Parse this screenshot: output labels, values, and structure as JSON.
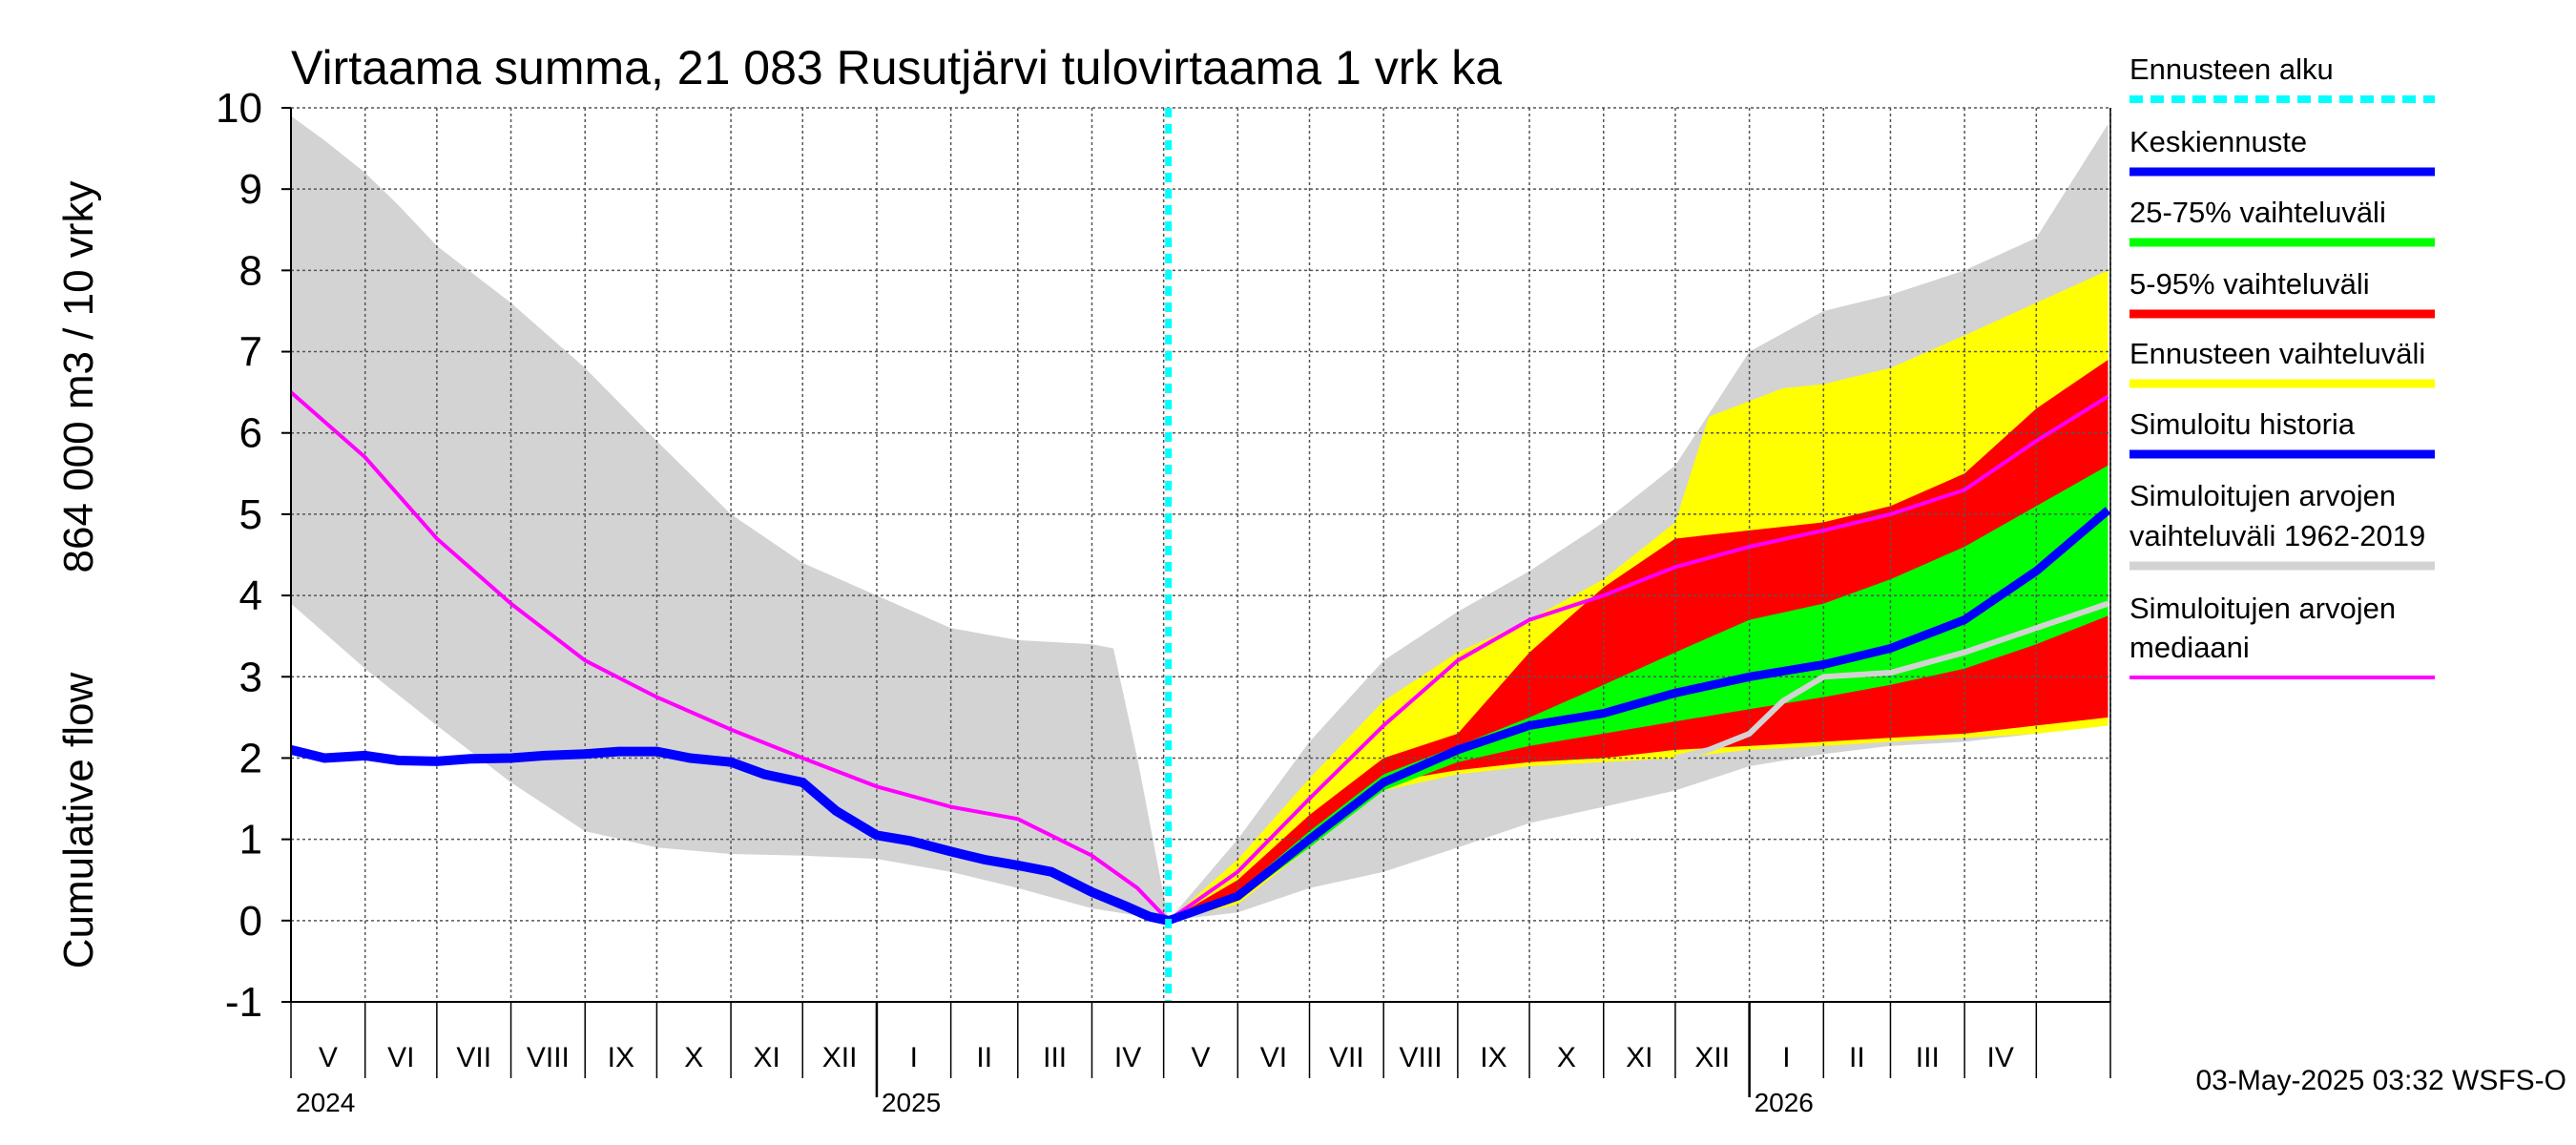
{
  "chart_data": {
    "type": "area",
    "title": "Virtaama summa, 21 083 Rusutjärvi tulovirtaama 1 vrk ka",
    "ylabel_lines": [
      "Cumulative flow",
      "864 000 m3 / 10 vrky"
    ],
    "xlabel": "",
    "ylim": [
      -1,
      10
    ],
    "yticks": [
      -1,
      0,
      1,
      2,
      3,
      4,
      5,
      6,
      7,
      8,
      9,
      10
    ],
    "grid": true,
    "legend_position": "right",
    "x_start": "2024-05-01",
    "x_end": "2026-05-31",
    "forecast_start": "2025-05-03",
    "month_labels": [
      "V",
      "VI",
      "VII",
      "VIII",
      "IX",
      "X",
      "XI",
      "XII",
      "I",
      "II",
      "III",
      "IV",
      "V",
      "VI",
      "VII",
      "VIII",
      "IX",
      "X",
      "XI",
      "XII",
      "I",
      "II",
      "III",
      "IV"
    ],
    "year_labels": [
      {
        "label": "2024",
        "date": "2024-05-01"
      },
      {
        "label": "2025",
        "date": "2025-01-01"
      },
      {
        "label": "2026",
        "date": "2026-01-01"
      }
    ],
    "legend": [
      {
        "label_lines": [
          "Ennusteen alku"
        ],
        "color": "#00ffff",
        "style": "dashed"
      },
      {
        "label_lines": [
          "Keskiennuste"
        ],
        "color": "#0000ff",
        "style": "solid"
      },
      {
        "label_lines": [
          "25-75% vaihteluväli"
        ],
        "color": "#00ff00",
        "style": "solid"
      },
      {
        "label_lines": [
          "5-95% vaihteluväli"
        ],
        "color": "#ff0000",
        "style": "solid"
      },
      {
        "label_lines": [
          "Ennusteen vaihteluväli"
        ],
        "color": "#ffff00",
        "style": "solid"
      },
      {
        "label_lines": [
          "Simuloitu historia"
        ],
        "color": "#0000ff",
        "style": "solid"
      },
      {
        "label_lines": [
          "Simuloitujen arvojen",
          "vaihteluväli 1962-2019"
        ],
        "color": "#d3d3d3",
        "style": "solid"
      },
      {
        "label_lines": [
          "Simuloitujen arvojen",
          "mediaani"
        ],
        "color": "#ff00ff",
        "style": "solid"
      }
    ],
    "series": {
      "hist_range_upper": [
        [
          "2024-05-01",
          9.9
        ],
        [
          "2024-05-15",
          9.6
        ],
        [
          "2024-06-01",
          9.2
        ],
        [
          "2024-06-15",
          8.8
        ],
        [
          "2024-07-01",
          8.3
        ],
        [
          "2024-08-01",
          7.6
        ],
        [
          "2024-09-01",
          6.8
        ],
        [
          "2024-10-01",
          5.9
        ],
        [
          "2024-11-01",
          5.0
        ],
        [
          "2024-12-01",
          4.4
        ],
        [
          "2025-01-01",
          4.0
        ],
        [
          "2025-02-01",
          3.6
        ],
        [
          "2025-03-01",
          3.45
        ],
        [
          "2025-04-01",
          3.4
        ],
        [
          "2025-04-10",
          3.35
        ],
        [
          "2025-04-20",
          2.0
        ],
        [
          "2025-05-03",
          0.0
        ]
      ],
      "hist_range_lower": [
        [
          "2024-05-01",
          3.9
        ],
        [
          "2024-06-01",
          3.1
        ],
        [
          "2024-07-01",
          2.4
        ],
        [
          "2024-08-01",
          1.7
        ],
        [
          "2024-09-01",
          1.1
        ],
        [
          "2024-10-01",
          0.9
        ],
        [
          "2024-11-01",
          0.82
        ],
        [
          "2024-12-01",
          0.8
        ],
        [
          "2025-01-01",
          0.76
        ],
        [
          "2025-02-01",
          0.6
        ],
        [
          "2025-03-01",
          0.4
        ],
        [
          "2025-04-01",
          0.15
        ],
        [
          "2025-05-03",
          0.0
        ]
      ],
      "hist_median": [
        [
          "2024-05-01",
          6.5
        ],
        [
          "2024-06-01",
          5.7
        ],
        [
          "2024-07-01",
          4.7
        ],
        [
          "2024-08-01",
          3.9
        ],
        [
          "2024-09-01",
          3.2
        ],
        [
          "2024-10-01",
          2.75
        ],
        [
          "2024-11-01",
          2.35
        ],
        [
          "2024-12-01",
          2.0
        ],
        [
          "2025-01-01",
          1.65
        ],
        [
          "2025-02-01",
          1.4
        ],
        [
          "2025-03-01",
          1.25
        ],
        [
          "2025-04-01",
          0.8
        ],
        [
          "2025-04-20",
          0.4
        ],
        [
          "2025-05-03",
          0.0
        ]
      ],
      "simulated_history": [
        [
          "2024-05-01",
          2.1
        ],
        [
          "2024-05-15",
          2.0
        ],
        [
          "2024-06-01",
          2.03
        ],
        [
          "2024-06-15",
          1.97
        ],
        [
          "2024-07-01",
          1.96
        ],
        [
          "2024-07-15",
          1.99
        ],
        [
          "2024-08-01",
          2.0
        ],
        [
          "2024-08-15",
          2.03
        ],
        [
          "2024-09-01",
          2.05
        ],
        [
          "2024-09-15",
          2.08
        ],
        [
          "2024-10-01",
          2.08
        ],
        [
          "2024-10-15",
          2.0
        ],
        [
          "2024-11-01",
          1.95
        ],
        [
          "2024-11-15",
          1.8
        ],
        [
          "2024-12-01",
          1.7
        ],
        [
          "2024-12-15",
          1.35
        ],
        [
          "2025-01-01",
          1.05
        ],
        [
          "2025-01-15",
          0.98
        ],
        [
          "2025-02-01",
          0.85
        ],
        [
          "2025-02-15",
          0.75
        ],
        [
          "2025-03-01",
          0.68
        ],
        [
          "2025-03-15",
          0.6
        ],
        [
          "2025-04-01",
          0.35
        ],
        [
          "2025-04-15",
          0.18
        ],
        [
          "2025-04-25",
          0.05
        ],
        [
          "2025-05-03",
          0.0
        ]
      ],
      "forecast_range_upper": [
        [
          "2025-05-03",
          0.0
        ],
        [
          "2025-06-01",
          0.75
        ],
        [
          "2025-07-01",
          1.75
        ],
        [
          "2025-08-01",
          2.7
        ],
        [
          "2025-09-01",
          3.3
        ],
        [
          "2025-10-01",
          3.7
        ],
        [
          "2025-11-01",
          4.2
        ],
        [
          "2025-12-01",
          4.9
        ],
        [
          "2025-12-15",
          6.2
        ],
        [
          "2026-01-15",
          6.55
        ],
        [
          "2026-02-01",
          6.6
        ],
        [
          "2026-03-01",
          6.8
        ],
        [
          "2026-04-01",
          7.2
        ],
        [
          "2026-05-01",
          7.6
        ],
        [
          "2026-05-31",
          8.0
        ]
      ],
      "forecast_range_lower": [
        [
          "2025-05-03",
          0.0
        ],
        [
          "2025-06-01",
          0.2
        ],
        [
          "2025-07-01",
          0.9
        ],
        [
          "2025-08-01",
          1.6
        ],
        [
          "2025-09-01",
          1.8
        ],
        [
          "2025-10-01",
          1.9
        ],
        [
          "2025-11-01",
          1.95
        ],
        [
          "2025-12-01",
          2.0
        ],
        [
          "2026-01-01",
          2.1
        ],
        [
          "2026-02-01",
          2.15
        ],
        [
          "2026-03-01",
          2.2
        ],
        [
          "2026-04-01",
          2.25
        ],
        [
          "2026-05-01",
          2.3
        ],
        [
          "2026-05-31",
          2.4
        ]
      ],
      "range_5_95_upper": [
        [
          "2025-05-03",
          0.0
        ],
        [
          "2025-06-01",
          0.5
        ],
        [
          "2025-07-01",
          1.3
        ],
        [
          "2025-08-01",
          2.0
        ],
        [
          "2025-09-01",
          2.3
        ],
        [
          "2025-10-01",
          3.3
        ],
        [
          "2025-11-01",
          4.1
        ],
        [
          "2025-12-01",
          4.7
        ],
        [
          "2026-01-01",
          4.8
        ],
        [
          "2026-02-01",
          4.9
        ],
        [
          "2026-03-01",
          5.1
        ],
        [
          "2026-04-01",
          5.5
        ],
        [
          "2026-05-01",
          6.3
        ],
        [
          "2026-05-31",
          6.9
        ]
      ],
      "range_5_95_lower": [
        [
          "2025-05-03",
          0.0
        ],
        [
          "2025-06-01",
          0.3
        ],
        [
          "2025-07-01",
          1.0
        ],
        [
          "2025-08-01",
          1.7
        ],
        [
          "2025-09-01",
          1.85
        ],
        [
          "2025-10-01",
          1.95
        ],
        [
          "2025-11-01",
          2.0
        ],
        [
          "2025-12-01",
          2.1
        ],
        [
          "2026-01-01",
          2.15
        ],
        [
          "2026-02-01",
          2.2
        ],
        [
          "2026-03-01",
          2.25
        ],
        [
          "2026-04-01",
          2.3
        ],
        [
          "2026-05-01",
          2.4
        ],
        [
          "2026-05-31",
          2.5
        ]
      ],
      "range_25_75_upper": [
        [
          "2025-05-03",
          0.0
        ],
        [
          "2025-06-01",
          0.35
        ],
        [
          "2025-07-01",
          1.1
        ],
        [
          "2025-08-01",
          1.8
        ],
        [
          "2025-09-01",
          2.15
        ],
        [
          "2025-10-01",
          2.5
        ],
        [
          "2025-11-01",
          2.9
        ],
        [
          "2025-12-01",
          3.3
        ],
        [
          "2026-01-01",
          3.7
        ],
        [
          "2026-02-01",
          3.9
        ],
        [
          "2026-03-01",
          4.2
        ],
        [
          "2026-04-01",
          4.6
        ],
        [
          "2026-05-01",
          5.1
        ],
        [
          "2026-05-31",
          5.6
        ]
      ],
      "range_25_75_lower": [
        [
          "2025-05-03",
          0.0
        ],
        [
          "2025-06-01",
          0.25
        ],
        [
          "2025-07-01",
          0.9
        ],
        [
          "2025-08-01",
          1.6
        ],
        [
          "2025-09-01",
          1.95
        ],
        [
          "2025-10-01",
          2.15
        ],
        [
          "2025-11-01",
          2.3
        ],
        [
          "2025-12-01",
          2.45
        ],
        [
          "2026-01-01",
          2.6
        ],
        [
          "2026-02-01",
          2.75
        ],
        [
          "2026-03-01",
          2.9
        ],
        [
          "2026-04-01",
          3.1
        ],
        [
          "2026-05-01",
          3.4
        ],
        [
          "2026-05-31",
          3.75
        ]
      ],
      "forecast_mean": [
        [
          "2025-05-03",
          0.0
        ],
        [
          "2025-06-01",
          0.3
        ],
        [
          "2025-07-01",
          1.0
        ],
        [
          "2025-08-01",
          1.7
        ],
        [
          "2025-09-01",
          2.1
        ],
        [
          "2025-10-01",
          2.4
        ],
        [
          "2025-11-01",
          2.55
        ],
        [
          "2025-12-01",
          2.8
        ],
        [
          "2026-01-01",
          3.0
        ],
        [
          "2026-02-01",
          3.15
        ],
        [
          "2026-03-01",
          3.35
        ],
        [
          "2026-04-01",
          3.7
        ],
        [
          "2026-05-01",
          4.3
        ],
        [
          "2026-05-31",
          5.05
        ]
      ],
      "median_forecast": [
        [
          "2025-05-03",
          0.0
        ],
        [
          "2025-06-01",
          0.6
        ],
        [
          "2025-07-01",
          1.5
        ],
        [
          "2025-08-01",
          2.4
        ],
        [
          "2025-09-01",
          3.2
        ],
        [
          "2025-10-01",
          3.7
        ],
        [
          "2025-11-01",
          4.0
        ],
        [
          "2025-12-01",
          4.35
        ],
        [
          "2026-01-01",
          4.6
        ],
        [
          "2026-02-01",
          4.8
        ],
        [
          "2026-03-01",
          5.0
        ],
        [
          "2026-04-01",
          5.3
        ],
        [
          "2026-05-01",
          5.9
        ],
        [
          "2026-05-31",
          6.45
        ]
      ],
      "hist_median_future": [
        [
          "2025-12-01",
          2.0
        ],
        [
          "2025-12-15",
          2.1
        ],
        [
          "2026-01-01",
          2.3
        ],
        [
          "2026-01-15",
          2.7
        ],
        [
          "2026-02-01",
          3.0
        ],
        [
          "2026-03-01",
          3.05
        ],
        [
          "2026-04-01",
          3.3
        ],
        [
          "2026-05-01",
          3.6
        ],
        [
          "2026-05-31",
          3.9
        ]
      ],
      "hist_range_future_upper": [
        [
          "2025-05-03",
          0.0
        ],
        [
          "2025-06-01",
          1.0
        ],
        [
          "2025-07-01",
          2.2
        ],
        [
          "2025-08-01",
          3.2
        ],
        [
          "2025-09-01",
          3.8
        ],
        [
          "2025-10-01",
          4.3
        ],
        [
          "2025-11-01",
          4.9
        ],
        [
          "2025-12-01",
          5.6
        ],
        [
          "2026-01-01",
          7.0
        ],
        [
          "2026-02-01",
          7.5
        ],
        [
          "2026-03-01",
          7.7
        ],
        [
          "2026-04-01",
          8.0
        ],
        [
          "2026-05-01",
          8.4
        ],
        [
          "2026-05-31",
          9.8
        ]
      ],
      "hist_range_future_lower": [
        [
          "2025-05-03",
          0.0
        ],
        [
          "2025-06-01",
          0.1
        ],
        [
          "2025-07-01",
          0.4
        ],
        [
          "2025-08-01",
          0.6
        ],
        [
          "2025-09-01",
          0.9
        ],
        [
          "2025-10-01",
          1.2
        ],
        [
          "2025-11-01",
          1.4
        ],
        [
          "2025-12-01",
          1.6
        ],
        [
          "2026-01-01",
          1.9
        ],
        [
          "2026-02-01",
          2.05
        ],
        [
          "2026-03-01",
          2.15
        ],
        [
          "2026-04-01",
          2.2
        ],
        [
          "2026-05-01",
          2.3
        ],
        [
          "2026-05-31",
          2.4
        ]
      ]
    },
    "footer": "03-May-2025 03:32 WSFS-O"
  }
}
